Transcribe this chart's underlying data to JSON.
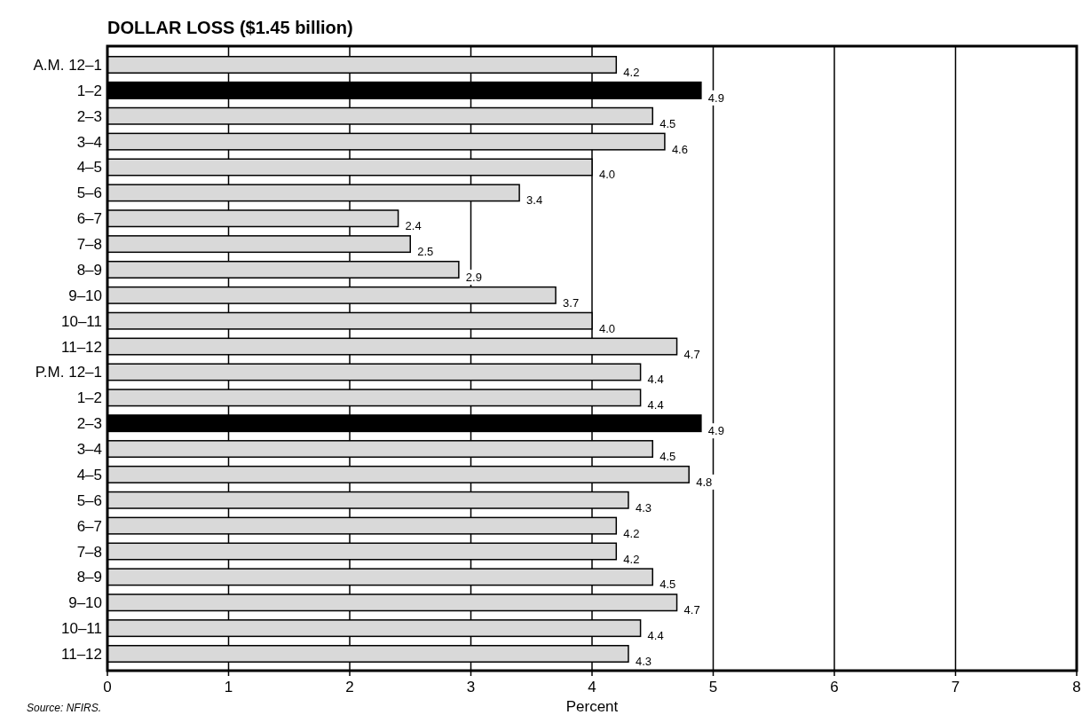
{
  "chart_data": {
    "type": "bar",
    "orientation": "horizontal",
    "title": "DOLLAR LOSS ($1.45 billion)",
    "xlabel": "Percent",
    "categories": [
      "A.M. 12–1",
      "1–2",
      "2–3",
      "3–4",
      "4–5",
      "5–6",
      "6–7",
      "7–8",
      "8–9",
      "9–10",
      "10–11",
      "11–12",
      "P.M. 12–1",
      "1–2",
      "2–3",
      "3–4",
      "4–5",
      "5–6",
      "6–7",
      "7–8",
      "8–9",
      "9–10",
      "10–11",
      "11–12"
    ],
    "values": [
      4.2,
      4.9,
      4.5,
      4.6,
      4.0,
      3.4,
      2.4,
      2.5,
      2.9,
      3.7,
      4.0,
      4.7,
      4.4,
      4.4,
      4.9,
      4.5,
      4.8,
      4.3,
      4.2,
      4.2,
      4.5,
      4.7,
      4.4,
      4.3
    ],
    "value_labels": [
      "4.2",
      "4.9",
      "4.5",
      "4.6",
      "4.0",
      "3.4",
      "2.4",
      "2.5",
      "2.9",
      "3.7",
      "4.0",
      "4.7",
      "4.4",
      "4.4",
      "4.9",
      "4.5",
      "4.8",
      "4.3",
      "4.2",
      "4.2",
      "4.5",
      "4.7",
      "4.4",
      "4.3"
    ],
    "colors": [
      "#d9d9d9",
      "#000000",
      "#d9d9d9",
      "#d9d9d9",
      "#d9d9d9",
      "#d9d9d9",
      "#d9d9d9",
      "#d9d9d9",
      "#d9d9d9",
      "#d9d9d9",
      "#d9d9d9",
      "#d9d9d9",
      "#d9d9d9",
      "#d9d9d9",
      "#000000",
      "#d9d9d9",
      "#d9d9d9",
      "#d9d9d9",
      "#d9d9d9",
      "#d9d9d9",
      "#d9d9d9",
      "#d9d9d9",
      "#d9d9d9",
      "#d9d9d9"
    ],
    "xlim": [
      0,
      8
    ],
    "xticks": [
      0,
      1,
      2,
      3,
      4,
      5,
      6,
      7,
      8
    ],
    "grid": "x",
    "annotations": [
      "Source:  NFIRS."
    ]
  }
}
